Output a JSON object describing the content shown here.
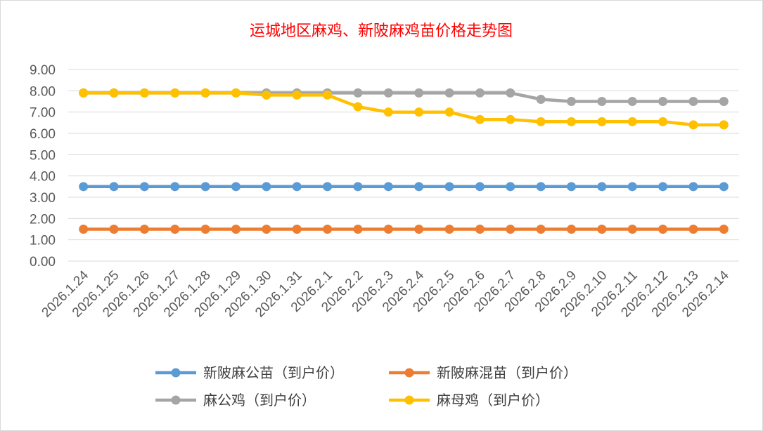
{
  "chart_data": {
    "type": "line",
    "title": "运城地区麻鸡、新陂麻鸡苗价格走势图",
    "xlabel": "",
    "ylabel": "",
    "ylim": [
      0,
      9
    ],
    "ytick_step": 1,
    "ytick_labels": [
      "0.00",
      "1.00",
      "2.00",
      "3.00",
      "4.00",
      "5.00",
      "6.00",
      "7.00",
      "8.00",
      "9.00"
    ],
    "grid": true,
    "legend_position": "bottom",
    "categories": [
      "2026.1.24",
      "2026.1.25",
      "2026.1.26",
      "2026.1.27",
      "2026.1.28",
      "2026.1.29",
      "2026.1.30",
      "2026.1.31",
      "2026.2.1",
      "2026.2.2",
      "2026.2.3",
      "2026.2.4",
      "2026.2.5",
      "2026.2.6",
      "2026.2.7",
      "2026.2.8",
      "2026.2.9",
      "2026.2.10",
      "2026.2.11",
      "2026.2.12",
      "2026.2.13",
      "2026.2.14"
    ],
    "series": [
      {
        "name": "新陂麻公苗（到户价）",
        "color": "#5b9bd5",
        "values": [
          3.5,
          3.5,
          3.5,
          3.5,
          3.5,
          3.5,
          3.5,
          3.5,
          3.5,
          3.5,
          3.5,
          3.5,
          3.5,
          3.5,
          3.5,
          3.5,
          3.5,
          3.5,
          3.5,
          3.5,
          3.5,
          3.5
        ]
      },
      {
        "name": "新陂麻混苗（到户价）",
        "color": "#ed7d31",
        "values": [
          1.5,
          1.5,
          1.5,
          1.5,
          1.5,
          1.5,
          1.5,
          1.5,
          1.5,
          1.5,
          1.5,
          1.5,
          1.5,
          1.5,
          1.5,
          1.5,
          1.5,
          1.5,
          1.5,
          1.5,
          1.5,
          1.5
        ]
      },
      {
        "name": "麻公鸡（到户价）",
        "color": "#a5a5a5",
        "values": [
          7.9,
          7.9,
          7.9,
          7.9,
          7.9,
          7.9,
          7.9,
          7.9,
          7.9,
          7.9,
          7.9,
          7.9,
          7.9,
          7.9,
          7.9,
          7.6,
          7.5,
          7.5,
          7.5,
          7.5,
          7.5,
          7.5
        ]
      },
      {
        "name": "麻母鸡（到户价）",
        "color": "#ffc000",
        "values": [
          7.9,
          7.9,
          7.9,
          7.9,
          7.9,
          7.9,
          7.8,
          7.8,
          7.8,
          7.25,
          7.0,
          7.0,
          7.0,
          6.65,
          6.65,
          6.55,
          6.55,
          6.55,
          6.55,
          6.55,
          6.4,
          6.4
        ]
      }
    ]
  }
}
